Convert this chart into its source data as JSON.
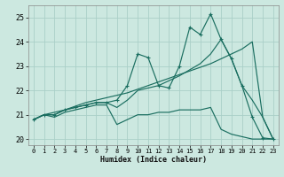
{
  "xlabel": "Humidex (Indice chaleur)",
  "bg_color": "#cce8e0",
  "grid_color": "#aacfc8",
  "line_color": "#1a6e60",
  "xlim": [
    -0.5,
    23.5
  ],
  "ylim": [
    19.75,
    25.5
  ],
  "yticks": [
    20,
    21,
    22,
    23,
    24,
    25
  ],
  "xticks": [
    0,
    1,
    2,
    3,
    4,
    5,
    6,
    7,
    8,
    9,
    10,
    11,
    12,
    13,
    14,
    15,
    16,
    17,
    18,
    19,
    20,
    21,
    22,
    23
  ],
  "s1_x": [
    0,
    1,
    2,
    3,
    4,
    5,
    6,
    7,
    8,
    9,
    10,
    11,
    12,
    13,
    14,
    15,
    16,
    17,
    18,
    19,
    20,
    21,
    22,
    23
  ],
  "s1_y": [
    20.8,
    21.0,
    20.9,
    21.1,
    21.2,
    21.3,
    21.4,
    21.4,
    20.6,
    20.8,
    21.0,
    21.0,
    21.1,
    21.1,
    21.2,
    21.2,
    21.2,
    21.3,
    20.4,
    20.2,
    20.1,
    20.0,
    20.0,
    20.0
  ],
  "s2_x": [
    0,
    1,
    2,
    3,
    4,
    5,
    6,
    7,
    8,
    9,
    10,
    11,
    12,
    13,
    14,
    15,
    16,
    17,
    18,
    19,
    20,
    21,
    22,
    23
  ],
  "s2_y": [
    20.8,
    21.0,
    21.0,
    21.2,
    21.3,
    21.4,
    21.5,
    21.5,
    21.6,
    22.2,
    23.5,
    23.35,
    22.2,
    22.1,
    23.0,
    24.6,
    24.3,
    25.15,
    24.1,
    23.3,
    22.2,
    20.9,
    20.05,
    20.0
  ],
  "s3_x": [
    0,
    1,
    2,
    3,
    4,
    5,
    6,
    7,
    8,
    9,
    10,
    11,
    12,
    13,
    14,
    15,
    16,
    17,
    18,
    19,
    20,
    21,
    22,
    23
  ],
  "s3_y": [
    20.8,
    21.0,
    21.0,
    21.2,
    21.3,
    21.4,
    21.5,
    21.5,
    21.3,
    21.6,
    22.0,
    22.1,
    22.2,
    22.4,
    22.6,
    22.85,
    23.1,
    23.5,
    24.1,
    23.3,
    22.2,
    21.6,
    20.9,
    20.0
  ],
  "s4_x": [
    0,
    1,
    2,
    3,
    4,
    5,
    6,
    7,
    8,
    9,
    10,
    11,
    12,
    13,
    14,
    15,
    16,
    17,
    18,
    19,
    20,
    21,
    22,
    23
  ],
  "s4_y": [
    20.8,
    21.0,
    21.1,
    21.2,
    21.35,
    21.5,
    21.6,
    21.7,
    21.8,
    21.9,
    22.05,
    22.2,
    22.35,
    22.5,
    22.65,
    22.8,
    22.95,
    23.1,
    23.3,
    23.5,
    23.7,
    24.0,
    20.9,
    20.0
  ]
}
